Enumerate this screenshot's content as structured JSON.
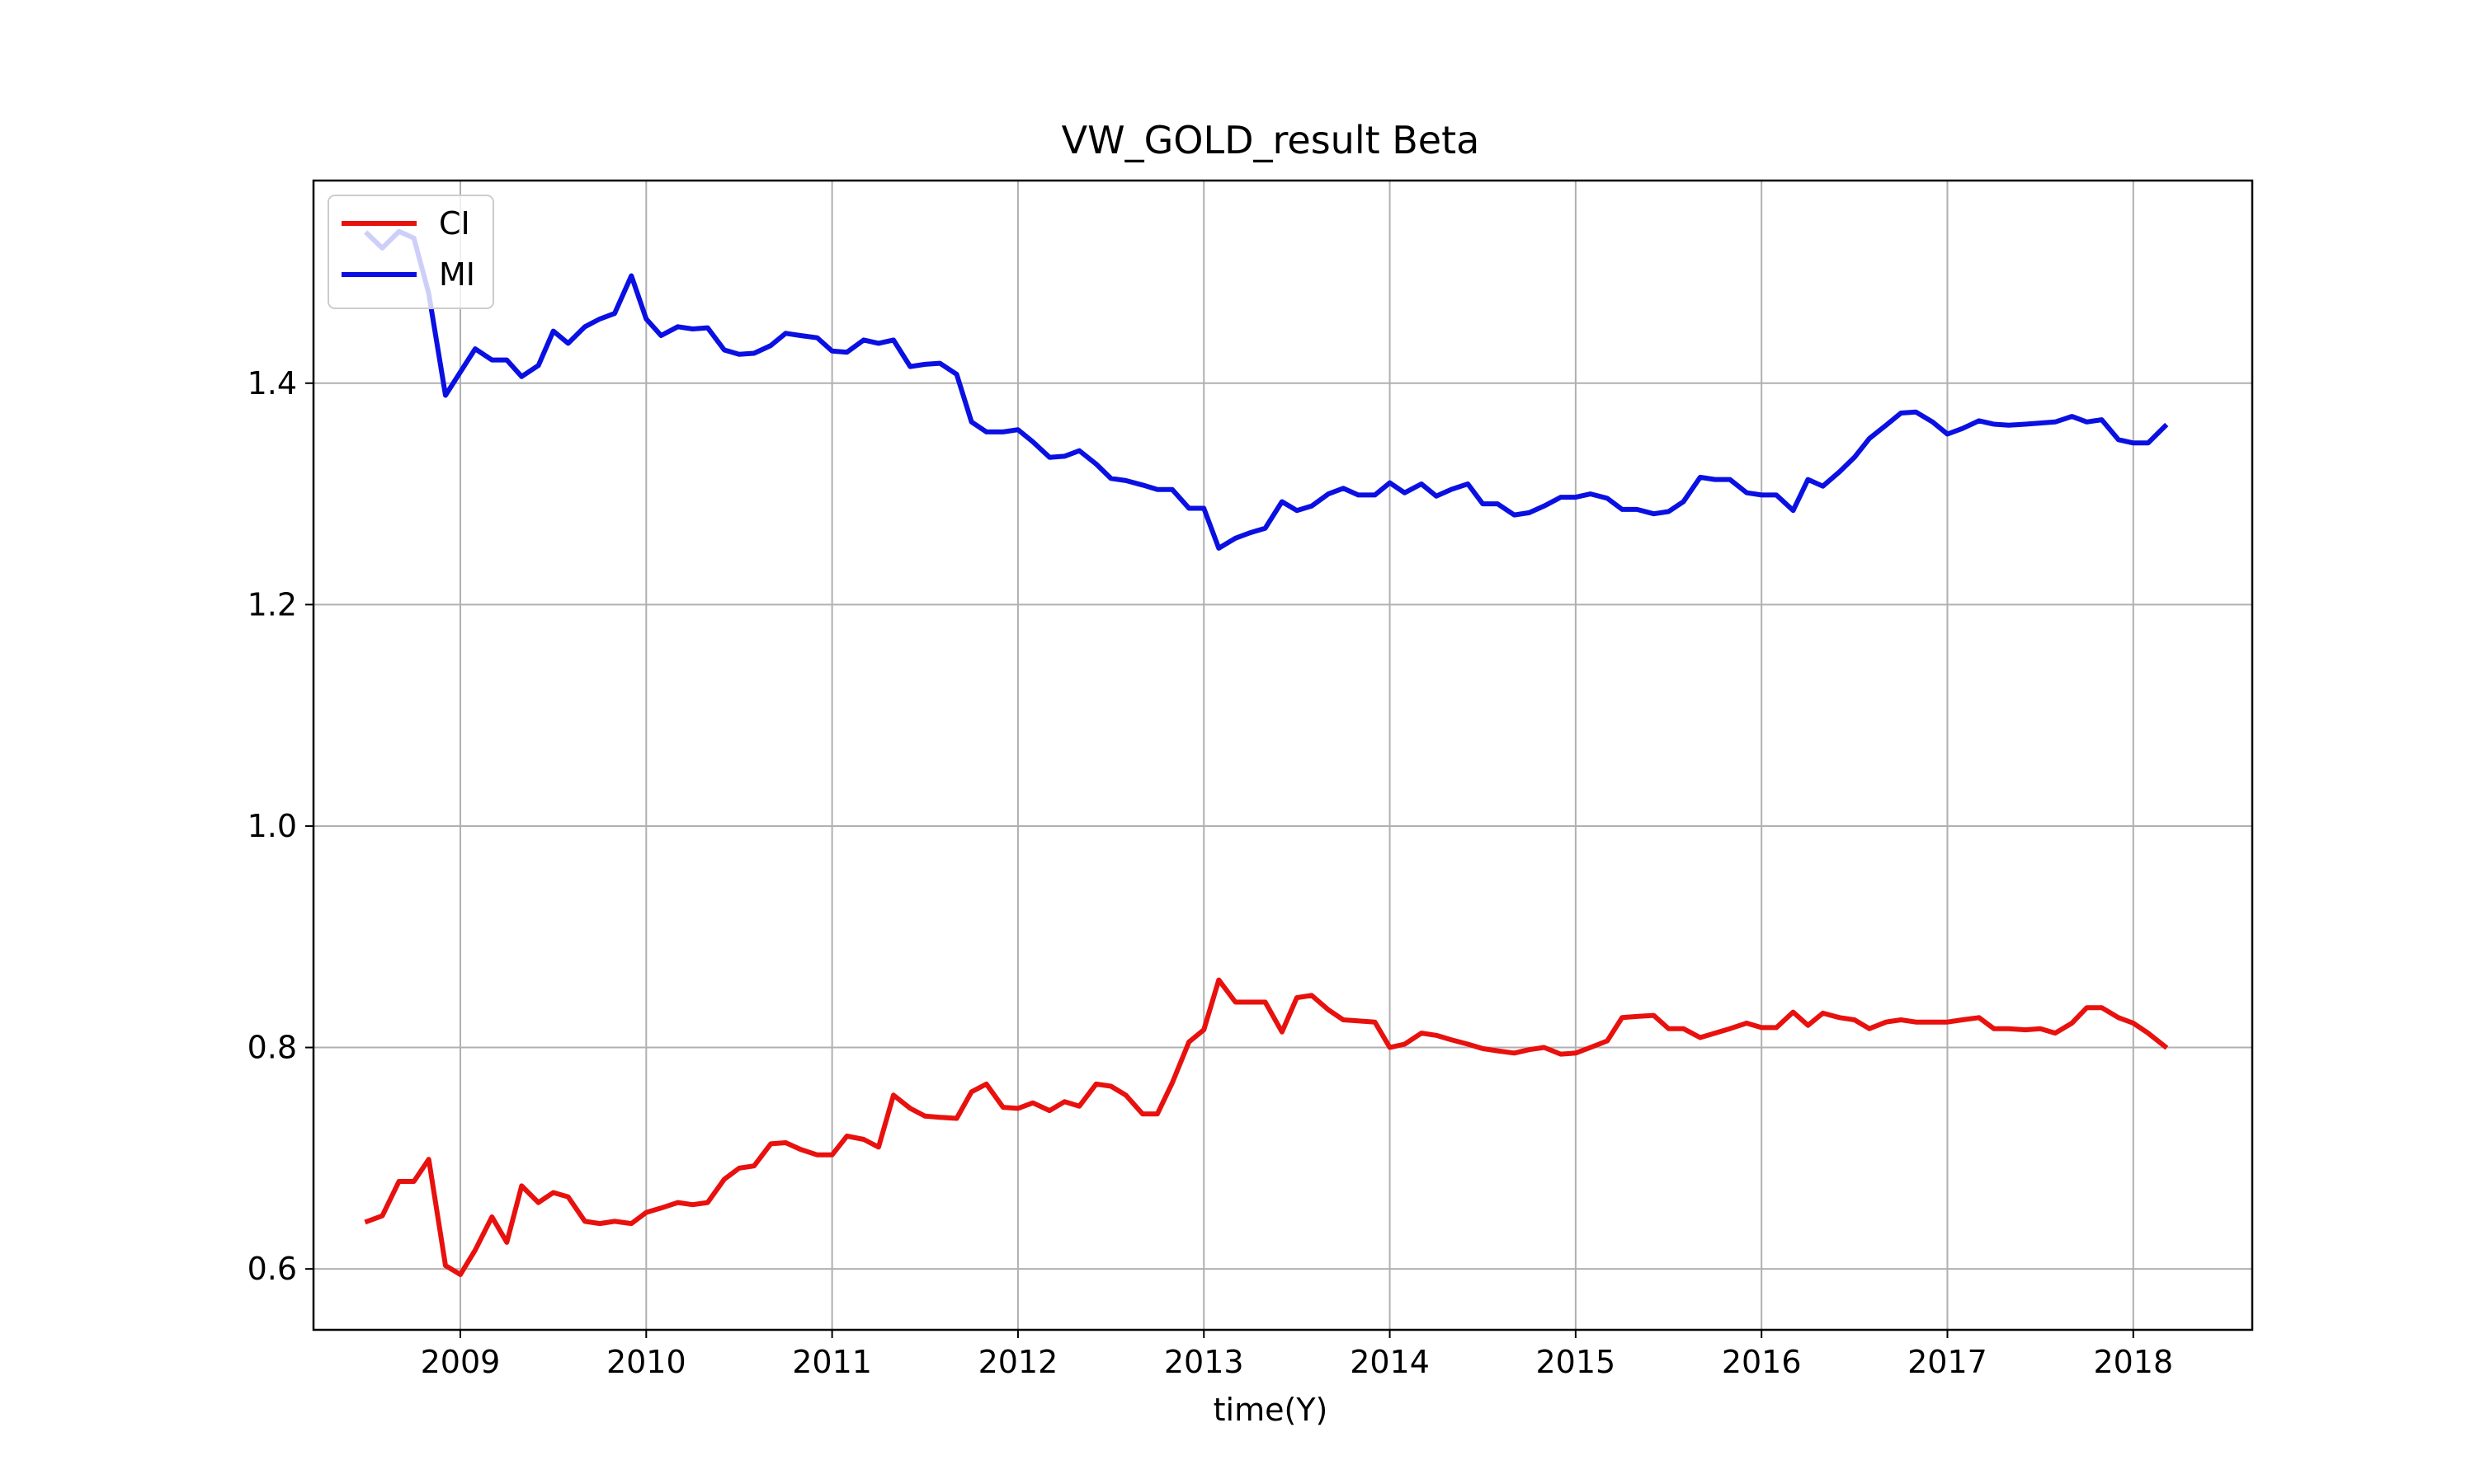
{
  "chart_data": {
    "type": "line",
    "title": "VW_GOLD_result Beta",
    "xlabel": "time(Y)",
    "ylabel": "",
    "xlim": [
      2008.21,
      2018.64
    ],
    "ylim": [
      0.545,
      1.583
    ],
    "x_ticks": [
      2009,
      2010,
      2011,
      2012,
      2013,
      2014,
      2015,
      2016,
      2017,
      2018
    ],
    "x_tick_labels": [
      "2009",
      "2010",
      "2011",
      "2012",
      "2013",
      "2014",
      "2015",
      "2016",
      "2017",
      "2018"
    ],
    "y_ticks": [
      0.6,
      0.8,
      1.0,
      1.2,
      1.4
    ],
    "y_tick_labels": [
      "0.6",
      "0.8",
      "1.0",
      "1.2",
      "1.4"
    ],
    "grid": true,
    "legend_position": "top-left",
    "series": [
      {
        "name": "CI",
        "color": "#e8110e",
        "x": [
          2008.5,
          2008.58,
          2008.67,
          2008.75,
          2008.83,
          2008.92,
          2009,
          2009.08,
          2009.17,
          2009.25,
          2009.33,
          2009.42,
          2009.5,
          2009.58,
          2009.67,
          2009.75,
          2009.83,
          2009.92,
          2010,
          2010.08,
          2010.17,
          2010.25,
          2010.33,
          2010.42,
          2010.5,
          2010.58,
          2010.67,
          2010.75,
          2010.83,
          2010.92,
          2011,
          2011.08,
          2011.17,
          2011.25,
          2011.33,
          2011.42,
          2011.5,
          2011.58,
          2011.67,
          2011.75,
          2011.83,
          2011.92,
          2012,
          2012.08,
          2012.17,
          2012.25,
          2012.33,
          2012.42,
          2012.5,
          2012.58,
          2012.67,
          2012.75,
          2012.83,
          2012.92,
          2013,
          2013.08,
          2013.17,
          2013.25,
          2013.33,
          2013.42,
          2013.5,
          2013.58,
          2013.67,
          2013.75,
          2013.83,
          2013.92,
          2014,
          2014.08,
          2014.17,
          2014.25,
          2014.33,
          2014.42,
          2014.5,
          2014.58,
          2014.67,
          2014.75,
          2014.83,
          2014.92,
          2015,
          2015.08,
          2015.17,
          2015.25,
          2015.33,
          2015.42,
          2015.5,
          2015.58,
          2015.67,
          2015.75,
          2015.83,
          2015.92,
          2016,
          2016.08,
          2016.17,
          2016.25,
          2016.33,
          2016.42,
          2016.5,
          2016.58,
          2016.67,
          2016.75,
          2016.83,
          2016.92,
          2017,
          2017.08,
          2017.17,
          2017.25,
          2017.33,
          2017.42,
          2017.5,
          2017.58,
          2017.67,
          2017.75,
          2017.83,
          2017.92,
          2018,
          2018.08,
          2018.17
        ],
        "values": [
          0.643,
          0.648,
          0.679,
          0.679,
          0.699,
          0.603,
          0.595,
          0.617,
          0.647,
          0.624,
          0.675,
          0.66,
          0.669,
          0.665,
          0.643,
          0.641,
          0.643,
          0.641,
          0.651,
          0.655,
          0.66,
          0.658,
          0.66,
          0.681,
          0.691,
          0.693,
          0.713,
          0.714,
          0.708,
          0.703,
          0.703,
          0.72,
          0.717,
          0.71,
          0.757,
          0.745,
          0.738,
          0.737,
          0.736,
          0.76,
          0.767,
          0.746,
          0.745,
          0.75,
          0.743,
          0.751,
          0.747,
          0.767,
          0.765,
          0.757,
          0.74,
          0.74,
          0.768,
          0.805,
          0.816,
          0.861,
          0.841,
          0.841,
          0.841,
          0.814,
          0.845,
          0.847,
          0.834,
          0.825,
          0.824,
          0.823,
          0.8,
          0.803,
          0.813,
          0.811,
          0.807,
          0.803,
          0.799,
          0.797,
          0.795,
          0.798,
          0.8,
          0.794,
          0.795,
          0.8,
          0.806,
          0.827,
          0.828,
          0.829,
          0.817,
          0.817,
          0.809,
          0.813,
          0.817,
          0.822,
          0.818,
          0.818,
          0.832,
          0.82,
          0.831,
          0.827,
          0.825,
          0.817,
          0.823,
          0.825,
          0.823,
          0.823,
          0.823,
          0.825,
          0.827,
          0.817,
          0.817,
          0.816,
          0.817,
          0.813,
          0.822,
          0.836,
          0.836,
          0.827,
          0.822,
          0.813,
          0.801
        ]
      },
      {
        "name": "MI",
        "color": "#0a10e2",
        "x": [
          2008.5,
          2008.58,
          2008.67,
          2008.75,
          2008.83,
          2008.92,
          2009,
          2009.08,
          2009.17,
          2009.25,
          2009.33,
          2009.42,
          2009.5,
          2009.58,
          2009.67,
          2009.75,
          2009.83,
          2009.92,
          2010,
          2010.08,
          2010.17,
          2010.25,
          2010.33,
          2010.42,
          2010.5,
          2010.58,
          2010.67,
          2010.75,
          2010.83,
          2010.92,
          2011,
          2011.08,
          2011.17,
          2011.25,
          2011.33,
          2011.42,
          2011.5,
          2011.58,
          2011.67,
          2011.75,
          2011.83,
          2011.92,
          2012,
          2012.08,
          2012.17,
          2012.25,
          2012.33,
          2012.42,
          2012.5,
          2012.58,
          2012.67,
          2012.75,
          2012.83,
          2012.92,
          2013,
          2013.08,
          2013.17,
          2013.25,
          2013.33,
          2013.42,
          2013.5,
          2013.58,
          2013.67,
          2013.75,
          2013.83,
          2013.92,
          2014,
          2014.08,
          2014.17,
          2014.25,
          2014.33,
          2014.42,
          2014.5,
          2014.58,
          2014.67,
          2014.75,
          2014.83,
          2014.92,
          2015,
          2015.08,
          2015.17,
          2015.25,
          2015.33,
          2015.42,
          2015.5,
          2015.58,
          2015.67,
          2015.75,
          2015.83,
          2015.92,
          2016,
          2016.08,
          2016.17,
          2016.25,
          2016.33,
          2016.42,
          2016.5,
          2016.58,
          2016.67,
          2016.75,
          2016.83,
          2016.92,
          2017,
          2017.08,
          2017.17,
          2017.25,
          2017.33,
          2017.42,
          2017.5,
          2017.58,
          2017.67,
          2017.75,
          2017.83,
          2017.92,
          2018,
          2018.08,
          2018.17
        ],
        "values": [
          1.535,
          1.522,
          1.537,
          1.531,
          1.481,
          1.389,
          1.41,
          1.431,
          1.421,
          1.421,
          1.406,
          1.416,
          1.447,
          1.436,
          1.451,
          1.458,
          1.463,
          1.497,
          1.458,
          1.443,
          1.451,
          1.449,
          1.45,
          1.43,
          1.426,
          1.427,
          1.434,
          1.445,
          1.443,
          1.441,
          1.429,
          1.428,
          1.439,
          1.436,
          1.439,
          1.415,
          1.417,
          1.418,
          1.408,
          1.365,
          1.356,
          1.356,
          1.358,
          1.347,
          1.333,
          1.334,
          1.339,
          1.327,
          1.314,
          1.312,
          1.308,
          1.304,
          1.304,
          1.287,
          1.287,
          1.251,
          1.26,
          1.265,
          1.269,
          1.293,
          1.285,
          1.289,
          1.3,
          1.305,
          1.299,
          1.299,
          1.31,
          1.301,
          1.309,
          1.298,
          1.304,
          1.309,
          1.291,
          1.291,
          1.281,
          1.283,
          1.289,
          1.297,
          1.297,
          1.3,
          1.296,
          1.286,
          1.286,
          1.282,
          1.284,
          1.293,
          1.315,
          1.313,
          1.313,
          1.301,
          1.299,
          1.299,
          1.285,
          1.313,
          1.307,
          1.32,
          1.333,
          1.35,
          1.362,
          1.373,
          1.374,
          1.365,
          1.354,
          1.359,
          1.366,
          1.363,
          1.362,
          1.363,
          1.364,
          1.365,
          1.37,
          1.365,
          1.367,
          1.349,
          1.346,
          1.346,
          1.361
        ]
      }
    ]
  }
}
